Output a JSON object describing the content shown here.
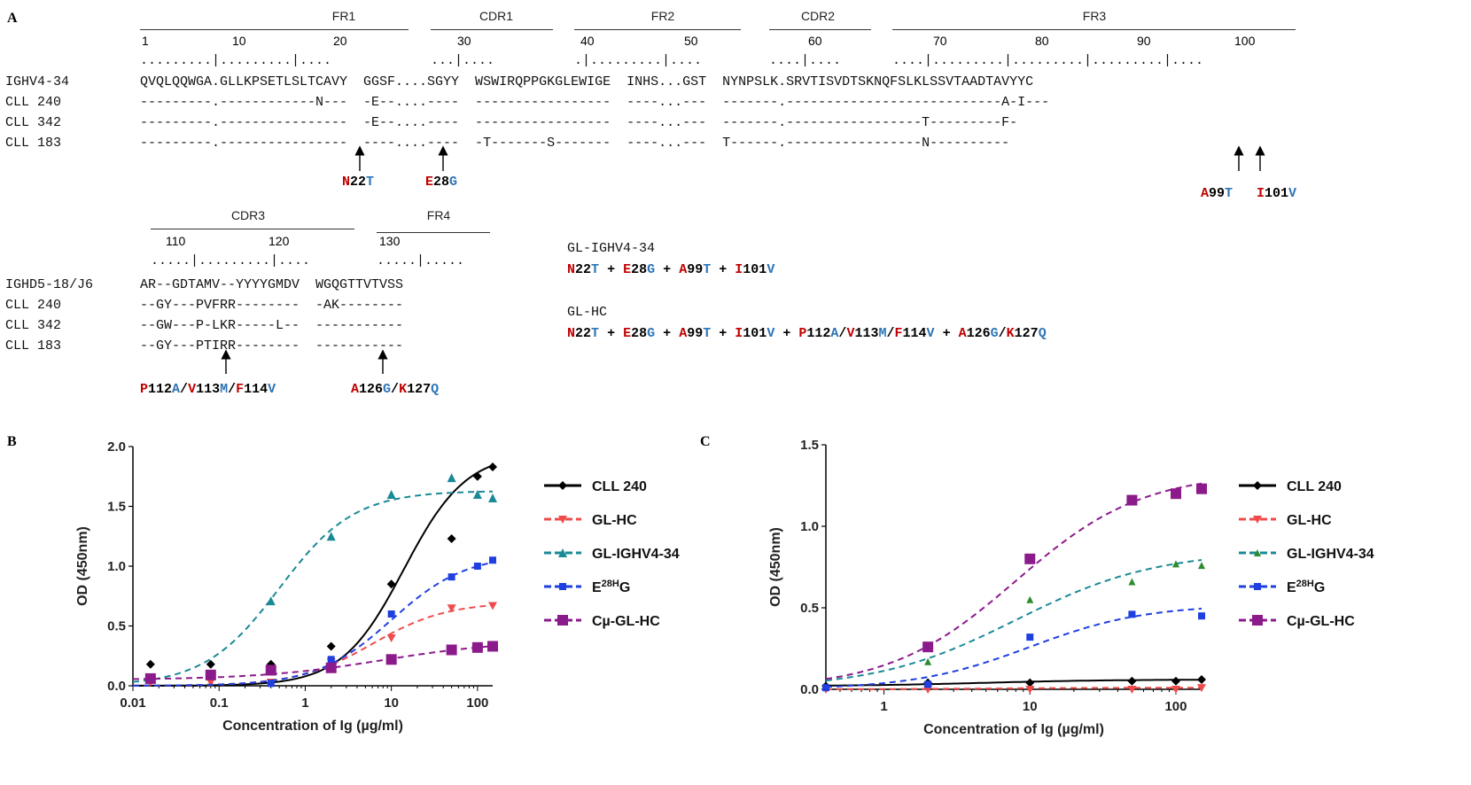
{
  "panel_a": {
    "label": "A",
    "top_regions": [
      {
        "name": "FR1"
      },
      {
        "name": "CDR1"
      },
      {
        "name": "FR2"
      },
      {
        "name": "CDR2"
      },
      {
        "name": "FR3"
      }
    ],
    "top_ticks": [
      "1",
      "10",
      "20",
      "30",
      "40",
      "50",
      "60",
      "70",
      "80",
      "90",
      "100"
    ],
    "top_rows": [
      {
        "name": "IGHV4-34",
        "seq": "QVQLQQWGA.GLLKPSETLSLTCAVY  GGSF....SGYY  WSWIRQPPGKGLEWIGE  INHS...GST  NYNPSLK.SRVTISVDTSKNQFSLKLSSVTAADTAVYYC"
      },
      {
        "name": "CLL 240",
        "seq": "---------.------------N---  -E--....----  -----------------  ----...---  -------.---------------------------A-I---"
      },
      {
        "name": "CLL 342",
        "seq": "---------.----------------  -E--....----  -----------------  ----...---  -------.-----------------T---------F-"
      },
      {
        "name": "CLL 183",
        "seq": "---------.----------------  ----....----  -T-------S-------  ----...---  T------.-----------------N----------"
      }
    ],
    "top_mutations": [
      "N22T",
      "E28G",
      "A99T",
      "I101V"
    ],
    "bottom_regions": [
      {
        "name": "CDR3"
      },
      {
        "name": "FR4"
      }
    ],
    "bottom_ticks": [
      "110",
      "120",
      "130"
    ],
    "bottom_rows": [
      {
        "name": "IGHD5-18/J6",
        "seq": "AR--GDTAMV--YYYYGMDV  WGQGTTVTVSS"
      },
      {
        "name": "CLL 240",
        "seq": "--GY---PVFRR--------  -AK--------"
      },
      {
        "name": "CLL 342",
        "seq": "--GW---P-LKR-----L--  -----------"
      },
      {
        "name": "CLL 183",
        "seq": "--GY---PTIRR--------  -----------"
      }
    ],
    "bottom_mutations": [
      "P112A/V113M/F114V",
      "A126G/K127Q"
    ],
    "constructs": [
      {
        "name": "GL-IGHV4-34",
        "muts": "N22T + E28G + A99T + I101V"
      },
      {
        "name": "GL-HC",
        "muts": "N22T + E28G + A99T + I101V + P112A/V113M/F114V + A126G/K127Q"
      }
    ]
  },
  "chart_data": [
    {
      "panel": "B",
      "type": "scatter",
      "xlabel": "Concentration of Ig (µg/ml)",
      "ylabel": "OD (450nm)",
      "xscale": "log",
      "xlim": [
        0.01,
        150
      ],
      "ylim": [
        0,
        2.0
      ],
      "xticks": [
        "0.01",
        "0.1",
        "1",
        "10",
        "100"
      ],
      "yticks": [
        "0.0",
        "0.5",
        "1.0",
        "1.5",
        "2.0"
      ],
      "series": [
        {
          "name": "CLL 240",
          "color": "#000000",
          "marker": "diamond",
          "dash": "solid",
          "x": [
            0.016,
            0.08,
            0.4,
            2,
            10,
            50,
            100,
            150
          ],
          "y": [
            0.18,
            0.18,
            0.18,
            0.33,
            0.85,
            1.23,
            1.75,
            1.83
          ],
          "fit": {
            "bottom": 0.0,
            "top": 1.95,
            "ec50": 14,
            "hill": 1.2
          }
        },
        {
          "name": "GL-HC",
          "color": "#ef4b4b",
          "marker": "triangle-down",
          "dash": "dashed",
          "x": [
            0.016,
            0.08,
            0.4,
            2,
            10,
            50,
            150
          ],
          "y": [
            0.03,
            0.03,
            0.03,
            0.2,
            0.4,
            0.65,
            0.67
          ],
          "fit": {
            "bottom": 0.0,
            "top": 0.7,
            "ec50": 6,
            "hill": 1.0
          }
        },
        {
          "name": "GL-IGHV4-34",
          "color": "#1a8a96",
          "marker": "triangle-up",
          "dash": "dashed",
          "x": [
            0.016,
            0.4,
            2,
            10,
            50,
            100,
            150
          ],
          "y": [
            0.06,
            0.71,
            1.25,
            1.6,
            1.74,
            1.6,
            1.57
          ],
          "fit": {
            "bottom": 0.0,
            "top": 1.63,
            "ec50": 0.5,
            "hill": 1.0
          }
        },
        {
          "name": "E28HG",
          "color": "#1f3fe0",
          "marker": "square",
          "dash": "dashed",
          "x": [
            0.4,
            2,
            10,
            50,
            100,
            150
          ],
          "y": [
            0.02,
            0.22,
            0.6,
            0.91,
            1.0,
            1.05
          ],
          "fit": {
            "bottom": 0.0,
            "top": 1.1,
            "ec50": 10,
            "hill": 1.0
          }
        },
        {
          "name": "Cµ-GL-HC",
          "color": "#8b1a8b",
          "marker": "square-big",
          "dash": "dashed",
          "x": [
            0.016,
            0.08,
            0.4,
            2,
            10,
            50,
            100,
            150
          ],
          "y": [
            0.06,
            0.09,
            0.13,
            0.15,
            0.22,
            0.3,
            0.32,
            0.33
          ],
          "fit": {
            "bottom": 0.05,
            "top": 0.38,
            "ec50": 8,
            "hill": 0.6
          }
        }
      ]
    },
    {
      "panel": "C",
      "type": "scatter",
      "xlabel": "Concentration of Ig (µg/ml)",
      "ylabel": "OD (450nm)",
      "xscale": "log",
      "xlim": [
        0.4,
        150
      ],
      "ylim": [
        0,
        1.5
      ],
      "xticks": [
        "1",
        "10",
        "100"
      ],
      "yticks": [
        "0.0",
        "0.5",
        "1.0",
        "1.5"
      ],
      "series": [
        {
          "name": "CLL 240",
          "color": "#000000",
          "marker": "diamond",
          "dash": "solid",
          "x": [
            0.4,
            2,
            10,
            50,
            100,
            150
          ],
          "y": [
            0.02,
            0.04,
            0.04,
            0.05,
            0.05,
            0.06
          ],
          "fit": {
            "bottom": 0.02,
            "top": 0.06,
            "ec50": 5,
            "hill": 1.0
          }
        },
        {
          "name": "GL-HC",
          "color": "#ef4b4b",
          "marker": "triangle-down",
          "dash": "dashed",
          "x": [
            0.4,
            2,
            10,
            50,
            100,
            150
          ],
          "y": [
            0.0,
            0.0,
            0.0,
            0.0,
            0.0,
            0.01
          ],
          "fit": {
            "bottom": 0.0,
            "top": 0.01,
            "ec50": 5,
            "hill": 1.0
          }
        },
        {
          "name": "GL-IGHV4-34",
          "color": "#1a8a96",
          "marker": "triangle-up-green",
          "dash": "dashed",
          "x": [
            2,
            10,
            50,
            100,
            150
          ],
          "y": [
            0.17,
            0.55,
            0.66,
            0.77,
            0.76
          ],
          "fit": {
            "bottom": 0.0,
            "top": 0.85,
            "ec50": 8,
            "hill": 0.9
          }
        },
        {
          "name": "E28HG",
          "color": "#1f3fe0",
          "marker": "square",
          "dash": "dashed",
          "x": [
            0.4,
            2,
            10,
            50,
            150
          ],
          "y": [
            0.01,
            0.03,
            0.32,
            0.46,
            0.45
          ],
          "fit": {
            "bottom": 0.0,
            "top": 0.52,
            "ec50": 10,
            "hill": 1.1
          }
        },
        {
          "name": "Cµ-GL-HC",
          "color": "#8b1a8b",
          "marker": "square-big",
          "dash": "dashed",
          "x": [
            2,
            10,
            50,
            100,
            150
          ],
          "y": [
            0.26,
            0.8,
            1.16,
            1.2,
            1.23
          ],
          "fit": {
            "bottom": 0.0,
            "top": 1.33,
            "ec50": 8,
            "hill": 1.0
          }
        }
      ]
    }
  ]
}
